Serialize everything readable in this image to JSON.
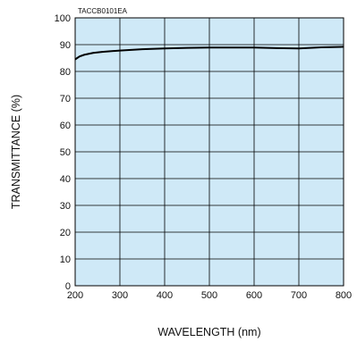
{
  "chart_data": {
    "type": "line",
    "code_label": "TACCB0101EA",
    "xlabel": "WAVELENGTH (nm)",
    "ylabel": "TRANSMITTANCE (%)",
    "xlim": [
      200,
      800
    ],
    "ylim": [
      0,
      100
    ],
    "xticks": [
      200,
      300,
      400,
      500,
      600,
      700,
      800
    ],
    "yticks": [
      0,
      10,
      20,
      30,
      40,
      50,
      60,
      70,
      80,
      90,
      100
    ],
    "grid": true,
    "background_color": "#cfe9f7",
    "line_color": "#000000",
    "series": [
      {
        "x": [
          200,
          210,
          220,
          240,
          260,
          300,
          350,
          400,
          450,
          500,
          550,
          600,
          650,
          700,
          750,
          800
        ],
        "y": [
          84.5,
          85.6,
          86.2,
          86.9,
          87.3,
          87.8,
          88.3,
          88.6,
          88.8,
          88.9,
          88.9,
          88.9,
          88.7,
          88.6,
          89.0,
          89.2
        ]
      }
    ]
  }
}
